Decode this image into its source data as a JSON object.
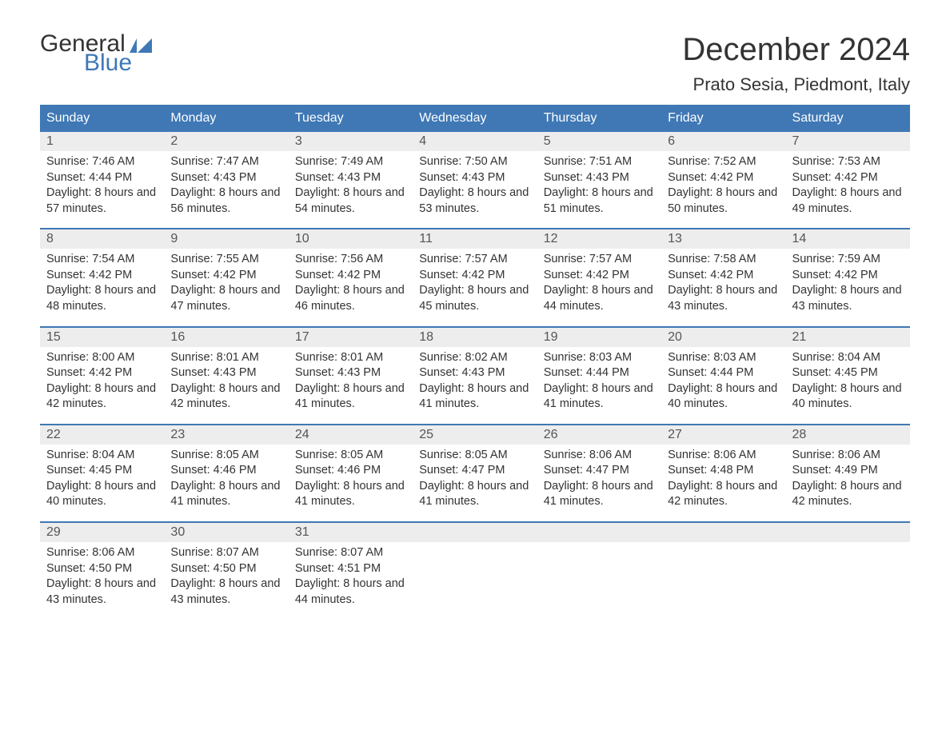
{
  "logo": {
    "text1": "General",
    "text2": "Blue",
    "icon_color": "#3f78b5"
  },
  "title": "December 2024",
  "location": "Prato Sesia, Piedmont, Italy",
  "colors": {
    "header_bg": "#3f78b5",
    "header_text": "#ffffff",
    "daynum_bg": "#ededed",
    "border": "#3f78b5",
    "text": "#333333"
  },
  "dow": [
    "Sunday",
    "Monday",
    "Tuesday",
    "Wednesday",
    "Thursday",
    "Friday",
    "Saturday"
  ],
  "weeks": [
    [
      {
        "n": "1",
        "sr": "7:46 AM",
        "ss": "4:44 PM",
        "dl": "8 hours and 57 minutes."
      },
      {
        "n": "2",
        "sr": "7:47 AM",
        "ss": "4:43 PM",
        "dl": "8 hours and 56 minutes."
      },
      {
        "n": "3",
        "sr": "7:49 AM",
        "ss": "4:43 PM",
        "dl": "8 hours and 54 minutes."
      },
      {
        "n": "4",
        "sr": "7:50 AM",
        "ss": "4:43 PM",
        "dl": "8 hours and 53 minutes."
      },
      {
        "n": "5",
        "sr": "7:51 AM",
        "ss": "4:43 PM",
        "dl": "8 hours and 51 minutes."
      },
      {
        "n": "6",
        "sr": "7:52 AM",
        "ss": "4:42 PM",
        "dl": "8 hours and 50 minutes."
      },
      {
        "n": "7",
        "sr": "7:53 AM",
        "ss": "4:42 PM",
        "dl": "8 hours and 49 minutes."
      }
    ],
    [
      {
        "n": "8",
        "sr": "7:54 AM",
        "ss": "4:42 PM",
        "dl": "8 hours and 48 minutes."
      },
      {
        "n": "9",
        "sr": "7:55 AM",
        "ss": "4:42 PM",
        "dl": "8 hours and 47 minutes."
      },
      {
        "n": "10",
        "sr": "7:56 AM",
        "ss": "4:42 PM",
        "dl": "8 hours and 46 minutes."
      },
      {
        "n": "11",
        "sr": "7:57 AM",
        "ss": "4:42 PM",
        "dl": "8 hours and 45 minutes."
      },
      {
        "n": "12",
        "sr": "7:57 AM",
        "ss": "4:42 PM",
        "dl": "8 hours and 44 minutes."
      },
      {
        "n": "13",
        "sr": "7:58 AM",
        "ss": "4:42 PM",
        "dl": "8 hours and 43 minutes."
      },
      {
        "n": "14",
        "sr": "7:59 AM",
        "ss": "4:42 PM",
        "dl": "8 hours and 43 minutes."
      }
    ],
    [
      {
        "n": "15",
        "sr": "8:00 AM",
        "ss": "4:42 PM",
        "dl": "8 hours and 42 minutes."
      },
      {
        "n": "16",
        "sr": "8:01 AM",
        "ss": "4:43 PM",
        "dl": "8 hours and 42 minutes."
      },
      {
        "n": "17",
        "sr": "8:01 AM",
        "ss": "4:43 PM",
        "dl": "8 hours and 41 minutes."
      },
      {
        "n": "18",
        "sr": "8:02 AM",
        "ss": "4:43 PM",
        "dl": "8 hours and 41 minutes."
      },
      {
        "n": "19",
        "sr": "8:03 AM",
        "ss": "4:44 PM",
        "dl": "8 hours and 41 minutes."
      },
      {
        "n": "20",
        "sr": "8:03 AM",
        "ss": "4:44 PM",
        "dl": "8 hours and 40 minutes."
      },
      {
        "n": "21",
        "sr": "8:04 AM",
        "ss": "4:45 PM",
        "dl": "8 hours and 40 minutes."
      }
    ],
    [
      {
        "n": "22",
        "sr": "8:04 AM",
        "ss": "4:45 PM",
        "dl": "8 hours and 40 minutes."
      },
      {
        "n": "23",
        "sr": "8:05 AM",
        "ss": "4:46 PM",
        "dl": "8 hours and 41 minutes."
      },
      {
        "n": "24",
        "sr": "8:05 AM",
        "ss": "4:46 PM",
        "dl": "8 hours and 41 minutes."
      },
      {
        "n": "25",
        "sr": "8:05 AM",
        "ss": "4:47 PM",
        "dl": "8 hours and 41 minutes."
      },
      {
        "n": "26",
        "sr": "8:06 AM",
        "ss": "4:47 PM",
        "dl": "8 hours and 41 minutes."
      },
      {
        "n": "27",
        "sr": "8:06 AM",
        "ss": "4:48 PM",
        "dl": "8 hours and 42 minutes."
      },
      {
        "n": "28",
        "sr": "8:06 AM",
        "ss": "4:49 PM",
        "dl": "8 hours and 42 minutes."
      }
    ],
    [
      {
        "n": "29",
        "sr": "8:06 AM",
        "ss": "4:50 PM",
        "dl": "8 hours and 43 minutes."
      },
      {
        "n": "30",
        "sr": "8:07 AM",
        "ss": "4:50 PM",
        "dl": "8 hours and 43 minutes."
      },
      {
        "n": "31",
        "sr": "8:07 AM",
        "ss": "4:51 PM",
        "dl": "8 hours and 44 minutes."
      },
      null,
      null,
      null,
      null
    ]
  ],
  "labels": {
    "sunrise": "Sunrise:",
    "sunset": "Sunset:",
    "daylight": "Daylight:"
  }
}
